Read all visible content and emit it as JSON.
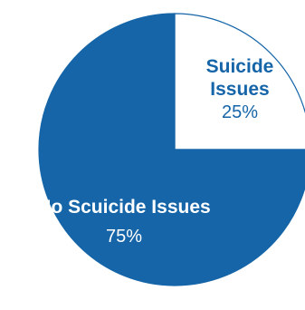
{
  "chart_data": {
    "type": "pie",
    "title": "",
    "slices": [
      {
        "name": "Suicide Issues",
        "label_lines": [
          "Suicide",
          "Issues"
        ],
        "value": 25,
        "value_label": "25%",
        "color": "#ffffff",
        "text_color": "#1565a8"
      },
      {
        "name": "No Scuicide Issues",
        "label_lines": [
          "No Scuicide Issues"
        ],
        "value": 75,
        "value_label": "75%",
        "color": "#1565a8",
        "text_color": "#ffffff"
      }
    ],
    "start_angle": "12 o'clock",
    "direction": "clockwise",
    "outline_color": "#1565a8"
  }
}
